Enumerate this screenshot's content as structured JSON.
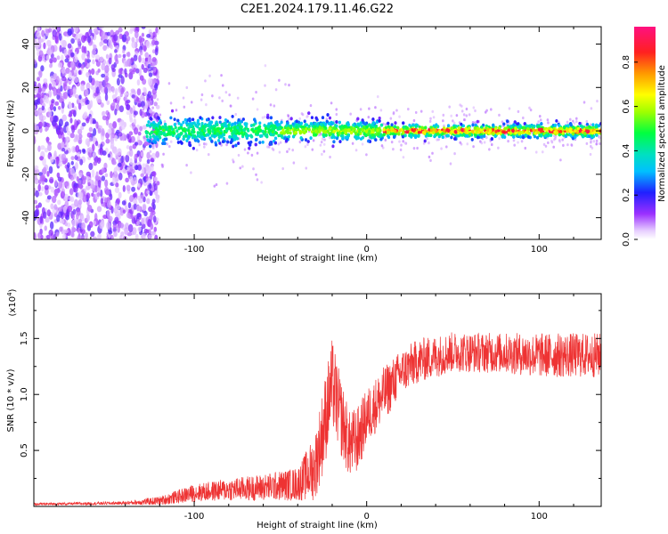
{
  "title": "C2E1.2024.179.11.46.G22",
  "chart_data": [
    {
      "type": "heatmap",
      "xlabel": "Height of straight line (km)",
      "ylabel": "Frequency (Hz)",
      "xlim": [
        -193,
        136
      ],
      "ylim": [
        -50,
        48
      ],
      "x_ticks": [
        -100,
        0,
        100
      ],
      "y_ticks": [
        -40,
        -20,
        0,
        20,
        40
      ],
      "colorbar": {
        "label": "Normalized spectral amplitude",
        "range": [
          0.0,
          0.96
        ],
        "ticks": [
          "0.0",
          "0.2",
          "0.4",
          "0.6",
          "0.8"
        ]
      },
      "description_points": [
        {
          "x": -193,
          "spread_hz": 48,
          "amp": 0.15
        },
        {
          "x": -125,
          "spread_hz": 48,
          "amp": 0.15
        },
        {
          "x": -120,
          "spread_hz": 8,
          "amp": 0.35
        },
        {
          "x": -60,
          "spread_hz": 6,
          "amp": 0.35
        },
        {
          "x": -40,
          "spread_hz": 4,
          "amp": 0.55
        },
        {
          "x": 0,
          "spread_hz": 4,
          "amp": 0.5
        },
        {
          "x": 20,
          "spread_hz": 3,
          "amp": 0.85
        },
        {
          "x": 136,
          "spread_hz": 3,
          "amp": 0.8
        }
      ]
    },
    {
      "type": "line",
      "xlabel": "Height of straight line (km)",
      "ylabel": "SNR (10 * v/v)",
      "y_multiplier": "(x10",
      "y_multiplier_exp": "4",
      "y_multiplier_close": ")",
      "xlim": [
        -193,
        136
      ],
      "ylim": [
        0,
        1.9
      ],
      "x_ticks": [
        -100,
        0,
        100
      ],
      "y_ticks": [
        "0.5",
        "1.0",
        "1.5"
      ],
      "y_tick_values": [
        0.5,
        1.0,
        1.5
      ],
      "color": "#ee3333",
      "envelope": {
        "x": [
          -193,
          -140,
          -120,
          -100,
          -80,
          -60,
          -40,
          -30,
          -25,
          -20,
          -15,
          -10,
          -5,
          0,
          10,
          20,
          30,
          50,
          80,
          100,
          136
        ],
        "y_mean": [
          0.02,
          0.03,
          0.05,
          0.12,
          0.15,
          0.17,
          0.2,
          0.35,
          0.7,
          1.1,
          0.8,
          0.55,
          0.6,
          0.8,
          1.0,
          1.2,
          1.3,
          1.38,
          1.37,
          1.35,
          1.35
        ],
        "y_amp": [
          0.01,
          0.015,
          0.04,
          0.08,
          0.1,
          0.12,
          0.15,
          0.3,
          0.4,
          0.4,
          0.35,
          0.3,
          0.3,
          0.25,
          0.25,
          0.2,
          0.2,
          0.18,
          0.18,
          0.2,
          0.2
        ]
      }
    }
  ]
}
